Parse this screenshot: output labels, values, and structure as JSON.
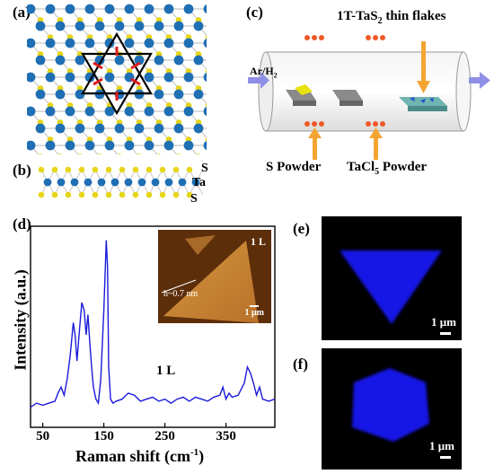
{
  "panels": {
    "a": "(a)",
    "b": "(b)",
    "c": "(c)",
    "d": "(d)",
    "e": "(e)",
    "f": "(f)"
  },
  "side_view": {
    "top": "S",
    "mid": "Ta",
    "bottom": "S"
  },
  "cvd": {
    "gas": "Ar/H",
    "gas_sub": "2",
    "product_pre": "1T-TaS",
    "product_sub": "2",
    "product_post": " thin flakes",
    "s_powder": "S Powder",
    "tacl_pre": "TaCl",
    "tacl_sub": "5",
    "tacl_post": " Powder"
  },
  "afm": {
    "layer": "1 L",
    "height": "h~0.7 nm",
    "scale": "1 μm"
  },
  "pl_images": {
    "e_scale": "1 μm",
    "f_scale": "1 μm"
  },
  "colors": {
    "ta_atom": "#1f6fb5",
    "s_atom": "#e6d51a",
    "spectrum": "#1a1adb",
    "pl": "#1414e6",
    "arrow_orange": "#f4a531",
    "flow": "#8f8fe6"
  },
  "chart_data": {
    "type": "line",
    "title": "",
    "xlabel_pre": "Raman shift (cm",
    "xlabel_sup": "-1",
    "xlabel_post": ")",
    "ylabel": "Intensity (a.u.)",
    "xlim": [
      30,
      430
    ],
    "ylim": [
      0,
      1
    ],
    "xticks": [
      "50",
      "150",
      "250",
      "350"
    ],
    "xtick_values": [
      50,
      150,
      250,
      350
    ],
    "annotation": "1 L",
    "series": [
      {
        "x": [
          30,
          40,
          50,
          60,
          70,
          75,
          80,
          85,
          90,
          95,
          100,
          103,
          106,
          110,
          114,
          118,
          121,
          124,
          127,
          130,
          133,
          137,
          141,
          145,
          150,
          154,
          156,
          158,
          161,
          165,
          170,
          180,
          190,
          200,
          210,
          220,
          230,
          240,
          250,
          260,
          270,
          280,
          290,
          300,
          310,
          320,
          330,
          340,
          345,
          350,
          355,
          360,
          370,
          380,
          385,
          390,
          395,
          400,
          405,
          410,
          420,
          430
        ],
        "y": [
          0.1,
          0.12,
          0.11,
          0.12,
          0.13,
          0.17,
          0.2,
          0.16,
          0.24,
          0.36,
          0.52,
          0.46,
          0.33,
          0.48,
          0.62,
          0.58,
          0.46,
          0.56,
          0.42,
          0.3,
          0.2,
          0.14,
          0.12,
          0.24,
          0.58,
          0.93,
          0.8,
          0.3,
          0.14,
          0.12,
          0.13,
          0.14,
          0.17,
          0.16,
          0.13,
          0.14,
          0.15,
          0.13,
          0.14,
          0.12,
          0.14,
          0.15,
          0.13,
          0.15,
          0.14,
          0.13,
          0.15,
          0.16,
          0.2,
          0.14,
          0.17,
          0.15,
          0.16,
          0.22,
          0.3,
          0.27,
          0.22,
          0.16,
          0.2,
          0.14,
          0.13,
          0.14
        ]
      }
    ]
  }
}
